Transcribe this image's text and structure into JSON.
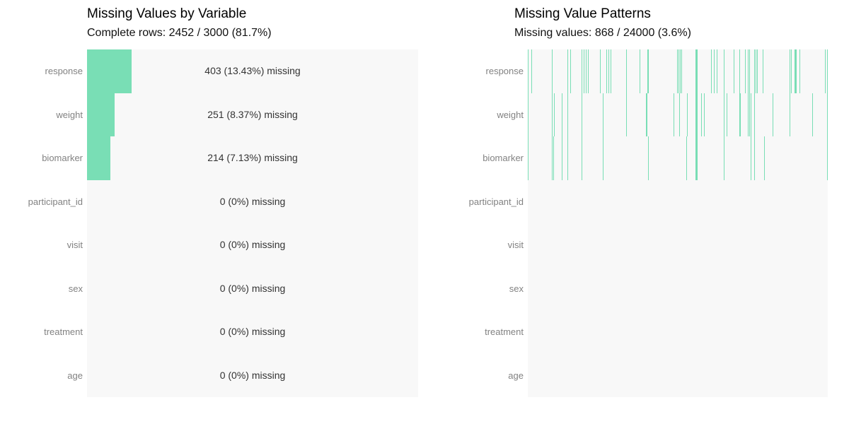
{
  "colors": {
    "accent_green": "#79DEB5",
    "plot_background": "#F8F8F8",
    "axis_label_gray": "#828282",
    "value_text": "#333333",
    "title_text": "#000000"
  },
  "chart_data": [
    {
      "type": "bar",
      "orientation": "horizontal",
      "title": "Missing Values by Variable",
      "subtitle": "Complete rows: 2452 / 3000 (81.7%)",
      "categories": [
        "response",
        "weight",
        "biomarker",
        "participant_id",
        "visit",
        "sex",
        "treatment",
        "age"
      ],
      "values": [
        403,
        251,
        214,
        0,
        0,
        0,
        0,
        0
      ],
      "value_labels": [
        "403 (13.43%) missing",
        "251 (8.37%) missing",
        "214 (7.13%) missing",
        "0 (0%) missing",
        "0 (0%) missing",
        "0 (0%) missing",
        "0 (0%) missing",
        "0 (0%) missing"
      ],
      "xlim": [
        0,
        3000
      ],
      "grid": false,
      "legend": false
    },
    {
      "type": "heatmap",
      "title": "Missing Value Patterns",
      "subtitle": "Missing values: 868 / 24000 (3.6%)",
      "categories": [
        "response",
        "weight",
        "biomarker",
        "participant_id",
        "visit",
        "sex",
        "treatment",
        "age"
      ],
      "x_domain": [
        0,
        1
      ],
      "grid": false,
      "legend": false,
      "rows": [
        {
          "name": "response",
          "ticks": [
            0.0,
            0.0118,
            0.0802,
            0.1321,
            0.1415,
            0.1792,
            0.1863,
            0.1934,
            0.2005,
            0.2406,
            0.2618,
            0.2689,
            0.276,
            0.3278,
            0.3726,
            0.4976,
            0.5024,
            0.5071,
            0.5118,
            0.5637,
            0.6108,
            0.6203,
            0.6297,
            0.6533,
            0.6863,
            0.7052,
            0.724,
            0.7335,
            0.7382,
            0.7547,
            0.7594,
            0.7641,
            0.783,
            0.8726,
            0.8774,
            0.8939,
            0.9057,
            0.9906,
            1.0
          ],
          "thick_ticks": [
            0.3986,
            0.559,
            0.8892
          ]
        },
        {
          "name": "weight",
          "ticks": [
            0.0,
            0.0802,
            0.0873,
            0.1132,
            0.1321,
            0.1792,
            0.25,
            0.3278,
            0.4858,
            0.5047,
            0.5307,
            0.5637,
            0.5778,
            0.5873,
            0.6533,
            0.6627,
            0.7052,
            0.7075,
            0.7335,
            0.7382,
            0.7429,
            0.7547,
            0.816,
            0.8726,
            0.9481,
            1.0
          ],
          "thick_ticks": [
            0.3939,
            0.559
          ]
        },
        {
          "name": "biomarker",
          "ticks": [
            0.0,
            0.0802,
            0.0849,
            0.1132,
            0.1321,
            0.1792,
            0.25,
            0.4009,
            0.5283,
            0.5637,
            0.6533,
            0.7429,
            0.7547,
            0.7877,
            1.0
          ],
          "thick_ticks": [
            0.559
          ]
        },
        {
          "name": "participant_id",
          "ticks": [],
          "thick_ticks": []
        },
        {
          "name": "visit",
          "ticks": [],
          "thick_ticks": []
        },
        {
          "name": "sex",
          "ticks": [],
          "thick_ticks": []
        },
        {
          "name": "treatment",
          "ticks": [],
          "thick_ticks": []
        },
        {
          "name": "age",
          "ticks": [],
          "thick_ticks": []
        }
      ]
    }
  ]
}
